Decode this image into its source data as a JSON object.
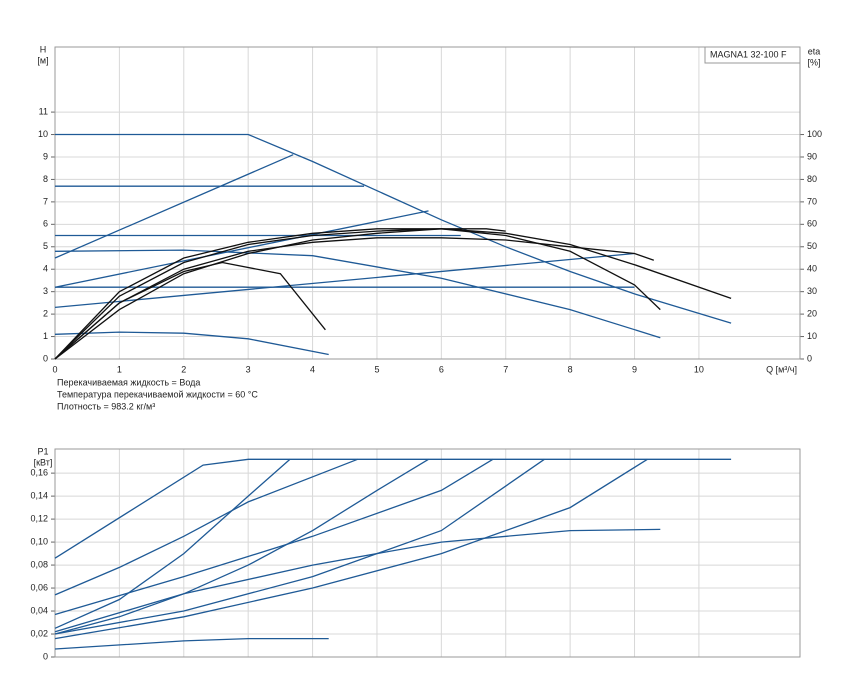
{
  "chart_data": [
    {
      "type": "line",
      "y_label": "H",
      "y_unit": "[м]",
      "y2_label": "eta",
      "y2_unit": "[%]",
      "legend_text": "MAGNA1 32-100 F",
      "x_label": "Q [м³/ч]",
      "notes": [
        "Перекачиваемая жидкость = Вода",
        "Температура перекачиваемой жидкости = 60 °C",
        "Плотность = 983.2 кг/м³"
      ],
      "xlim": [
        0,
        11.57
      ],
      "xticks": [
        0,
        1,
        2,
        3,
        4,
        5,
        6,
        7,
        8,
        9,
        10
      ],
      "ylim": [
        0,
        13.9
      ],
      "yticks": [
        0,
        1,
        2,
        3,
        4,
        5,
        6,
        7,
        8,
        9,
        10,
        11
      ],
      "y2lim": [
        0,
        139
      ],
      "y2ticks": [
        0,
        10,
        20,
        30,
        40,
        50,
        60,
        70,
        80,
        90,
        100
      ],
      "grid": true,
      "series": [
        {
          "color": "#1f5a96",
          "x": [
            0,
            3,
            4,
            5,
            6,
            7,
            8,
            9,
            10.5
          ],
          "values": [
            10,
            10,
            8.8,
            7.5,
            6.2,
            5.0,
            3.9,
            2.9,
            1.6
          ]
        },
        {
          "color": "#1f5a96",
          "x": [
            0,
            3.7
          ],
          "values": [
            4.5,
            9.1
          ]
        },
        {
          "color": "#1f5a96",
          "x": [
            0,
            5.8
          ],
          "values": [
            3.2,
            6.6
          ]
        },
        {
          "color": "#1f5a96",
          "x": [
            0,
            9.0
          ],
          "values": [
            2.3,
            4.7
          ]
        },
        {
          "color": "#1f5a96",
          "x": [
            0,
            4.8
          ],
          "values": [
            7.7,
            7.7
          ]
        },
        {
          "color": "#1f5a96",
          "x": [
            0,
            6.3
          ],
          "values": [
            5.5,
            5.5
          ]
        },
        {
          "color": "#1f5a96",
          "x": [
            0,
            9.0
          ],
          "values": [
            3.2,
            3.2
          ]
        },
        {
          "color": "#1f5a96",
          "x": [
            0,
            2,
            4,
            6,
            8,
            9.4
          ],
          "values": [
            4.8,
            4.85,
            4.6,
            3.6,
            2.2,
            0.95
          ]
        },
        {
          "color": "#1f5a96",
          "x": [
            0,
            1,
            2,
            3,
            4.25
          ],
          "values": [
            1.1,
            1.2,
            1.15,
            0.9,
            0.2
          ]
        },
        {
          "color": "#111111",
          "axis": "y2",
          "x": [
            0,
            1,
            2,
            2.6,
            3.5,
            4.2
          ],
          "values": [
            0,
            25,
            39,
            43,
            38,
            13
          ]
        },
        {
          "color": "#111111",
          "axis": "y2",
          "x": [
            0,
            1,
            2,
            3,
            4,
            5,
            6,
            7,
            8,
            9,
            10.5
          ],
          "values": [
            0,
            28,
            43,
            51,
            55,
            57,
            58,
            56,
            51,
            42,
            27
          ]
        },
        {
          "color": "#111111",
          "axis": "y2",
          "x": [
            0,
            1,
            2,
            3,
            4,
            5,
            6,
            7,
            8,
            9,
            9.4
          ],
          "values": [
            0,
            30,
            45,
            52,
            56,
            58,
            58,
            55,
            48,
            33,
            22
          ]
        },
        {
          "color": "#111111",
          "axis": "y2",
          "x": [
            0,
            1,
            2,
            3,
            4,
            5,
            6,
            7,
            8,
            9,
            9.3
          ],
          "values": [
            0,
            25,
            40,
            48,
            52,
            54,
            54,
            53,
            50,
            47,
            44
          ]
        },
        {
          "color": "#111111",
          "axis": "y2",
          "x": [
            0,
            1,
            2,
            3,
            4,
            5,
            6,
            6.7,
            7
          ],
          "values": [
            0,
            22,
            38,
            47,
            53,
            56,
            58,
            58,
            57
          ]
        }
      ]
    },
    {
      "type": "line",
      "y_label": "P1",
      "y_unit": "[кВт]",
      "xlim": [
        0,
        11.57
      ],
      "ylim": [
        0,
        0.181
      ],
      "yticks": [
        0,
        {
          "value": 0.02,
          "label": "0,02"
        },
        {
          "value": 0.04,
          "label": "0,04"
        },
        {
          "value": 0.06,
          "label": "0,06"
        },
        {
          "value": 0.08,
          "label": "0,08"
        },
        {
          "value": 0.1,
          "label": "0,10"
        },
        {
          "value": 0.12,
          "label": "0,12"
        },
        {
          "value": 0.14,
          "label": "0,14"
        },
        {
          "value": 0.16,
          "label": "0,16"
        }
      ],
      "grid": true,
      "series": [
        {
          "color": "#1f5a96",
          "x": [
            0,
            2.3,
            3,
            10.5
          ],
          "values": [
            0.086,
            0.167,
            0.172,
            0.172
          ]
        },
        {
          "color": "#1f5a96",
          "x": [
            0,
            1,
            2,
            3,
            3.65
          ],
          "values": [
            0.025,
            0.05,
            0.09,
            0.14,
            0.172
          ]
        },
        {
          "color": "#1f5a96",
          "x": [
            0,
            1,
            2,
            3,
            4.7
          ],
          "values": [
            0.054,
            0.078,
            0.105,
            0.135,
            0.172
          ]
        },
        {
          "color": "#1f5a96",
          "x": [
            0,
            1,
            2,
            3,
            4,
            5,
            5.8
          ],
          "values": [
            0.02,
            0.035,
            0.055,
            0.08,
            0.11,
            0.145,
            0.172
          ]
        },
        {
          "color": "#1f5a96",
          "x": [
            0,
            2,
            4,
            6,
            6.8
          ],
          "values": [
            0.037,
            0.07,
            0.105,
            0.145,
            0.172
          ]
        },
        {
          "color": "#1f5a96",
          "x": [
            0,
            2,
            4,
            6,
            7.6
          ],
          "values": [
            0.02,
            0.04,
            0.07,
            0.11,
            0.172
          ]
        },
        {
          "color": "#1f5a96",
          "x": [
            0,
            2,
            4,
            6,
            8,
            9.2
          ],
          "values": [
            0.016,
            0.035,
            0.06,
            0.09,
            0.13,
            0.172
          ]
        },
        {
          "color": "#1f5a96",
          "x": [
            0,
            2,
            4,
            6,
            8,
            9.4
          ],
          "values": [
            0.022,
            0.055,
            0.08,
            0.1,
            0.11,
            0.111
          ]
        },
        {
          "color": "#1f5a96",
          "x": [
            0,
            2,
            3,
            4.25
          ],
          "values": [
            0.007,
            0.014,
            0.016,
            0.016
          ]
        }
      ]
    }
  ]
}
